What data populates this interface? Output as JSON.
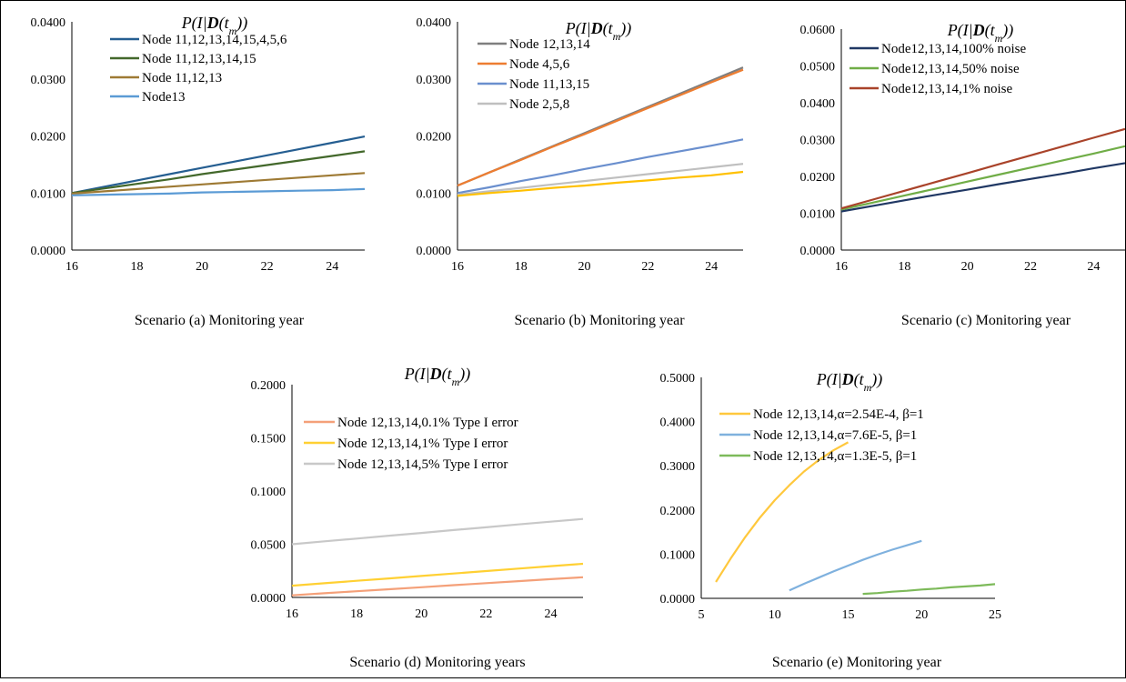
{
  "chart_data": [
    {
      "type": "line",
      "title": "P(I|D(t_m))",
      "title_parts": {
        "pre": "P(I|",
        "bold": "D",
        "mid": "(t",
        "sub": "m",
        "post": "))"
      },
      "xlabel": "Scenario (a)  Monitoring year",
      "x": [
        16,
        17,
        18,
        19,
        20,
        21,
        22,
        23,
        24,
        25
      ],
      "xlim": [
        16,
        25
      ],
      "xticks": [
        16,
        18,
        20,
        22,
        24
      ],
      "xtick_labels": [
        "16",
        "18",
        "20",
        "22",
        "24"
      ],
      "ylim": [
        0,
        0.04
      ],
      "yticks": [
        0,
        0.01,
        0.02,
        0.03,
        0.04
      ],
      "ytick_labels": [
        "0.0000",
        "0.0100",
        "0.0200",
        "0.0300",
        "0.0400"
      ],
      "legend_position": "top-left",
      "series": [
        {
          "name": "Node 11,12,13,14,15,4,5,6",
          "color": "#255E91",
          "values": [
            0.01,
            0.0111,
            0.0122,
            0.0133,
            0.0144,
            0.0155,
            0.0166,
            0.0177,
            0.0188,
            0.0199
          ]
        },
        {
          "name": "Node 11,12,13,14,15",
          "color": "#43682B",
          "values": [
            0.01,
            0.0108,
            0.0116,
            0.0124,
            0.0133,
            0.0141,
            0.0149,
            0.0157,
            0.0165,
            0.0173
          ]
        },
        {
          "name": "Node 11,12,13",
          "color": "#9E7A34",
          "values": [
            0.0099,
            0.0103,
            0.0107,
            0.0111,
            0.0115,
            0.0119,
            0.0123,
            0.0127,
            0.0131,
            0.0135
          ]
        },
        {
          "name": "Node13",
          "color": "#5B9BD5",
          "values": [
            0.0096,
            0.0097,
            0.0098,
            0.0099,
            0.0101,
            0.0102,
            0.0103,
            0.0104,
            0.0105,
            0.0107
          ]
        }
      ]
    },
    {
      "type": "line",
      "title": "P(I|D(t_m))",
      "title_parts": {
        "pre": "P(I|",
        "bold": "D",
        "mid": "(t",
        "sub": "m",
        "post": "))"
      },
      "xlabel": "Scenario (b)  Monitoring year",
      "x": [
        16,
        17,
        18,
        19,
        20,
        21,
        22,
        23,
        24,
        25
      ],
      "xlim": [
        16,
        25
      ],
      "xticks": [
        16,
        18,
        20,
        22,
        24
      ],
      "xtick_labels": [
        "16",
        "18",
        "20",
        "22",
        "24"
      ],
      "ylim": [
        0,
        0.04
      ],
      "yticks": [
        0,
        0.01,
        0.02,
        0.03,
        0.04
      ],
      "ytick_labels": [
        "0.0000",
        "0.0100",
        "0.0200",
        "0.0300",
        "0.0400"
      ],
      "legend_position": "top-left",
      "series": [
        {
          "name": "Node 12,13,14",
          "color": "#7F7F7F",
          "values": [
            0.0113,
            0.0136,
            0.0159,
            0.0182,
            0.0205,
            0.0228,
            0.0251,
            0.0274,
            0.0297,
            0.032
          ]
        },
        {
          "name": "Node 4,5,6",
          "color": "#ED7D31",
          "values": [
            0.0113,
            0.0136,
            0.0158,
            0.0181,
            0.0203,
            0.0226,
            0.0249,
            0.0271,
            0.0294,
            0.0316
          ]
        },
        {
          "name": "Node 11,13,15",
          "color": "#6A8FCE",
          "values": [
            0.01,
            0.011,
            0.0121,
            0.0131,
            0.0142,
            0.0152,
            0.0163,
            0.0173,
            0.0183,
            0.0194
          ]
        },
        {
          "name": "Node 2,5,8",
          "color": "#BFBFBF",
          "values": [
            0.0097,
            0.0103,
            0.0109,
            0.0115,
            0.0121,
            0.0127,
            0.0133,
            0.0139,
            0.0145,
            0.0151
          ]
        },
        {
          "name": "",
          "color": "#FFC000",
          "values": [
            0.0095,
            0.01,
            0.0104,
            0.0109,
            0.0113,
            0.0118,
            0.0122,
            0.0127,
            0.0131,
            0.0137
          ]
        }
      ]
    },
    {
      "type": "line",
      "title": "P(I|D(t_m))",
      "title_parts": {
        "pre": "P(I|",
        "bold": "D",
        "mid": "(t",
        "sub": "m",
        "post": "))"
      },
      "xlabel": "Scenario (c)  Monitoring year",
      "x": [
        16,
        17,
        18,
        19,
        20,
        21,
        22,
        23,
        24,
        25
      ],
      "xlim": [
        16,
        25
      ],
      "xticks": [
        16,
        18,
        20,
        22,
        24
      ],
      "xtick_labels": [
        "16",
        "18",
        "20",
        "22",
        "24"
      ],
      "ylim": [
        0,
        0.06
      ],
      "yticks": [
        0,
        0.01,
        0.02,
        0.03,
        0.04,
        0.05,
        0.06
      ],
      "ytick_labels": [
        "0.0000",
        "0.0100",
        "0.0200",
        "0.0300",
        "0.0400",
        "0.0500",
        "0.0600"
      ],
      "legend_position": "top-right",
      "series": [
        {
          "name": "Node12,13,14,100% noise",
          "color": "#203864",
          "values": [
            0.0105,
            0.012,
            0.0135,
            0.015,
            0.0164,
            0.0179,
            0.0193,
            0.0207,
            0.0222,
            0.0236
          ]
        },
        {
          "name": "Node12,13,14,50% noise",
          "color": "#70AD47",
          "values": [
            0.011,
            0.0129,
            0.0148,
            0.0167,
            0.0186,
            0.0205,
            0.0224,
            0.0243,
            0.0262,
            0.0282
          ]
        },
        {
          "name": "Node12,13,14,1% noise",
          "color": "#A9432A",
          "values": [
            0.0113,
            0.0137,
            0.0161,
            0.0185,
            0.0209,
            0.0233,
            0.0257,
            0.0281,
            0.0305,
            0.0329
          ]
        }
      ]
    },
    {
      "type": "line",
      "title": "P(I|D(t_m))",
      "title_parts": {
        "pre": "P(I|",
        "bold": "D",
        "mid": "(t",
        "sub": "m",
        "post": "))"
      },
      "xlabel": "Scenario (d)  Monitoring years",
      "x": [
        16,
        17,
        18,
        19,
        20,
        21,
        22,
        23,
        24,
        25
      ],
      "xlim": [
        16,
        25
      ],
      "xticks": [
        16,
        18,
        20,
        22,
        24
      ],
      "xtick_labels": [
        "16",
        "18",
        "20",
        "22",
        "24"
      ],
      "ylim": [
        0,
        0.2
      ],
      "yticks": [
        0,
        0.05,
        0.1,
        0.15,
        0.2
      ],
      "ytick_labels": [
        "0.0000",
        "0.0500",
        "0.1000",
        "0.1500",
        "0.2000"
      ],
      "legend_position": "top-left",
      "series": [
        {
          "name": "Node 12,13,14,0.1% Type I error",
          "color": "#F4A079",
          "values": [
            0.002,
            0.0039,
            0.0058,
            0.0077,
            0.0096,
            0.0115,
            0.0134,
            0.0153,
            0.0172,
            0.019
          ]
        },
        {
          "name": "Node 12,13,14,1% Type I error",
          "color": "#FFD033",
          "values": [
            0.011,
            0.0133,
            0.0156,
            0.0179,
            0.0202,
            0.0225,
            0.0248,
            0.0271,
            0.0294,
            0.0316
          ]
        },
        {
          "name": "Node 12,13,14,5% Type I error",
          "color": "#C8C8C8",
          "values": [
            0.05,
            0.0527,
            0.0553,
            0.058,
            0.0606,
            0.0633,
            0.0659,
            0.0686,
            0.0712,
            0.0738
          ]
        }
      ]
    },
    {
      "type": "line",
      "title": "P(I|D(t_m))",
      "title_parts": {
        "pre": "P(I|",
        "bold": "D",
        "mid": "(t",
        "sub": "m",
        "post": "))"
      },
      "xlabel": "Scenario (e)  Monitoring year",
      "xlim": [
        5,
        25
      ],
      "xticks": [
        5,
        10,
        15,
        20,
        25
      ],
      "xtick_labels": [
        "5",
        "10",
        "15",
        "20",
        "25"
      ],
      "ylim": [
        0,
        0.5
      ],
      "yticks": [
        0,
        0.1,
        0.2,
        0.3,
        0.4,
        0.5
      ],
      "ytick_labels": [
        "0.0000",
        "0.1000",
        "0.2000",
        "0.3000",
        "0.4000",
        "0.5000"
      ],
      "legend_position": "top-left",
      "series": [
        {
          "name": "Node 12,13,14,α=2.54E-4, β=1",
          "color": "#FFC83D",
          "x": [
            6,
            7,
            8,
            9,
            10,
            11,
            12,
            13,
            14,
            15
          ],
          "values": [
            0.037,
            0.09,
            0.139,
            0.183,
            0.222,
            0.256,
            0.287,
            0.313,
            0.335,
            0.353
          ]
        },
        {
          "name": "Node 12,13,14,α=7.6E-5, β=1",
          "color": "#7FB1DE",
          "x": [
            11,
            12,
            13,
            14,
            15,
            16,
            17,
            18,
            19,
            20
          ],
          "values": [
            0.018,
            0.033,
            0.047,
            0.061,
            0.074,
            0.087,
            0.099,
            0.11,
            0.12,
            0.13
          ]
        },
        {
          "name": "Node 12,13,14,α=1.3E-5, β=1",
          "color": "#7DBA5A",
          "x": [
            16,
            17,
            18,
            19,
            20,
            21,
            22,
            23,
            24,
            25
          ],
          "values": [
            0.01,
            0.012,
            0.015,
            0.017,
            0.02,
            0.022,
            0.025,
            0.027,
            0.029,
            0.032
          ]
        }
      ]
    }
  ]
}
